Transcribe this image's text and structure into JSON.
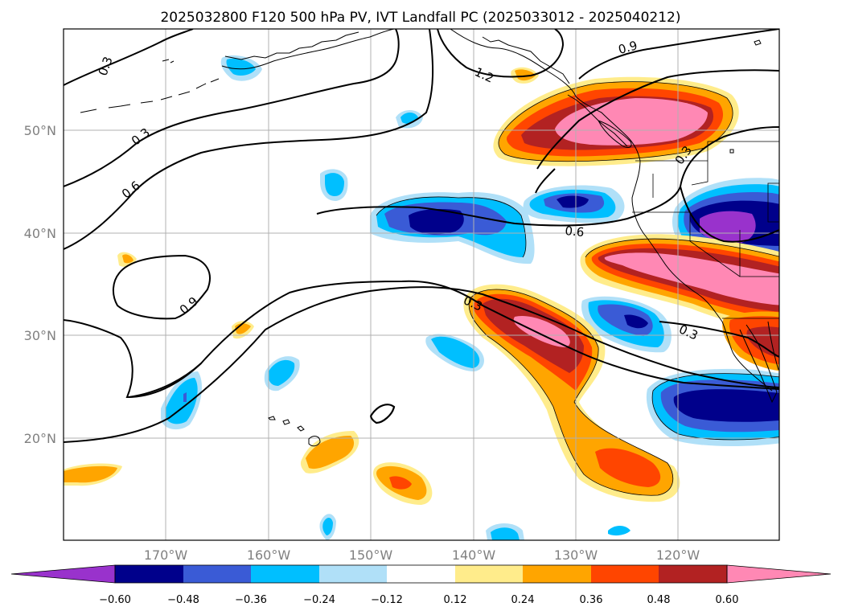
{
  "title": "2025032800 F120 500 hPa PV, IVT Landfall PC (2025033012 - 2025040212)",
  "axes": {
    "lon_labels": [
      "170°W",
      "160°W",
      "150°W",
      "140°W",
      "130°W",
      "120°W"
    ],
    "lat_labels": [
      "50°N",
      "40°N",
      "30°N",
      "20°N"
    ],
    "grid": true
  },
  "contour_labels": [
    "0.3",
    "0.3",
    "0.6",
    "0.9",
    "1.2",
    "0.9",
    "0.3",
    "0.6",
    "0.3",
    "0.3"
  ],
  "colorbar": {
    "ticks": [
      "−0.60",
      "−0.48",
      "−0.36",
      "−0.24",
      "−0.12",
      "0.12",
      "0.24",
      "0.36",
      "0.48",
      "0.60"
    ],
    "colors": [
      "#9932cc",
      "#00008b",
      "#3a5bd6",
      "#00bfff",
      "#b0e0f8",
      "#ffffff",
      "#ffec8b",
      "#ffa500",
      "#ff4500",
      "#b22222",
      "#ff88b4"
    ],
    "extend": "both"
  }
}
